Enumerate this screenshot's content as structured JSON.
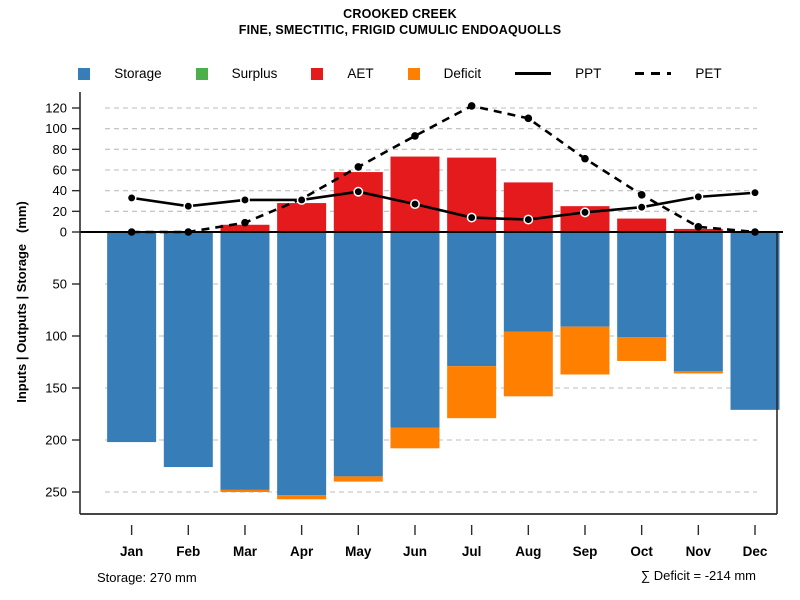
{
  "header": {
    "title": "CROOKED CREEK",
    "subtitle": "FINE, SMECTITIC, FRIGID CUMULIC ENDOAQUOLLS"
  },
  "legend": {
    "items": [
      {
        "label": "Storage",
        "marker": "square",
        "color": "#377eb8"
      },
      {
        "label": "Surplus",
        "marker": "square",
        "color": "#4daf4a"
      },
      {
        "label": "AET",
        "marker": "square",
        "color": "#e41a1c"
      },
      {
        "label": "Deficit",
        "marker": "square",
        "color": "#ff7f00"
      },
      {
        "label": "PPT",
        "marker": "line-solid",
        "color": "#000000"
      },
      {
        "label": "PET",
        "marker": "line-dashed",
        "color": "#000000"
      }
    ]
  },
  "captions": {
    "storage": "Storage: 270 mm",
    "deficit_sum": "∑ Deficit = -214 mm"
  },
  "chart_data": {
    "type": "bar",
    "subtype": "combo-stacked-bars-with-lines",
    "title": "CROOKED CREEK",
    "subtitle": "FINE, SMECTITIC, FRIGID CUMULIC ENDOAQUOLLS",
    "ylabel": "Inputs | Outputs | Storage   (mm)",
    "xlabel": "",
    "categories": [
      "Jan",
      "Feb",
      "Mar",
      "Apr",
      "May",
      "Jun",
      "Jul",
      "Aug",
      "Sep",
      "Oct",
      "Nov",
      "Dec"
    ],
    "axis": {
      "upward_ticks": [
        0,
        20,
        40,
        60,
        80,
        100,
        120
      ],
      "downward_ticks": [
        50,
        100,
        150,
        200,
        250
      ],
      "upward_range": [
        0,
        124
      ],
      "downward_range": [
        0,
        260
      ],
      "grid": true,
      "legend_position": "top"
    },
    "series": [
      {
        "name": "Storage",
        "type": "bar",
        "direction": "down",
        "color": "#377eb8",
        "values": [
          202,
          226,
          248,
          253,
          235,
          188,
          129,
          96,
          91,
          101,
          134,
          171
        ]
      },
      {
        "name": "Surplus",
        "type": "bar",
        "direction": "up",
        "color": "#4daf4a",
        "values": [
          0,
          0,
          0,
          0,
          0,
          0,
          0,
          0,
          0,
          0,
          0,
          0
        ]
      },
      {
        "name": "AET",
        "type": "bar",
        "direction": "up",
        "color": "#e41a1c",
        "values": [
          0,
          0,
          7,
          28,
          58,
          73,
          72,
          48,
          25,
          13,
          3,
          0
        ]
      },
      {
        "name": "Deficit",
        "type": "bar",
        "direction": "down-stacked-below-storage",
        "color": "#ff7f00",
        "values": [
          0,
          0,
          2,
          4,
          5,
          20,
          50,
          62,
          46,
          23,
          2,
          0
        ]
      },
      {
        "name": "PPT",
        "type": "line",
        "style": "solid",
        "color": "#000000",
        "values": [
          33,
          25,
          31,
          31,
          39,
          27,
          14,
          12,
          19,
          24,
          34,
          38
        ]
      },
      {
        "name": "PET",
        "type": "line",
        "style": "dashed",
        "color": "#000000",
        "values": [
          0,
          0,
          9,
          32,
          63,
          93,
          122,
          110,
          71,
          36,
          5,
          0
        ]
      }
    ],
    "annotations": {
      "storage_capacity_mm": "Storage: 270 mm",
      "deficit_total_mm": "∑ Deficit = -214 mm"
    }
  }
}
